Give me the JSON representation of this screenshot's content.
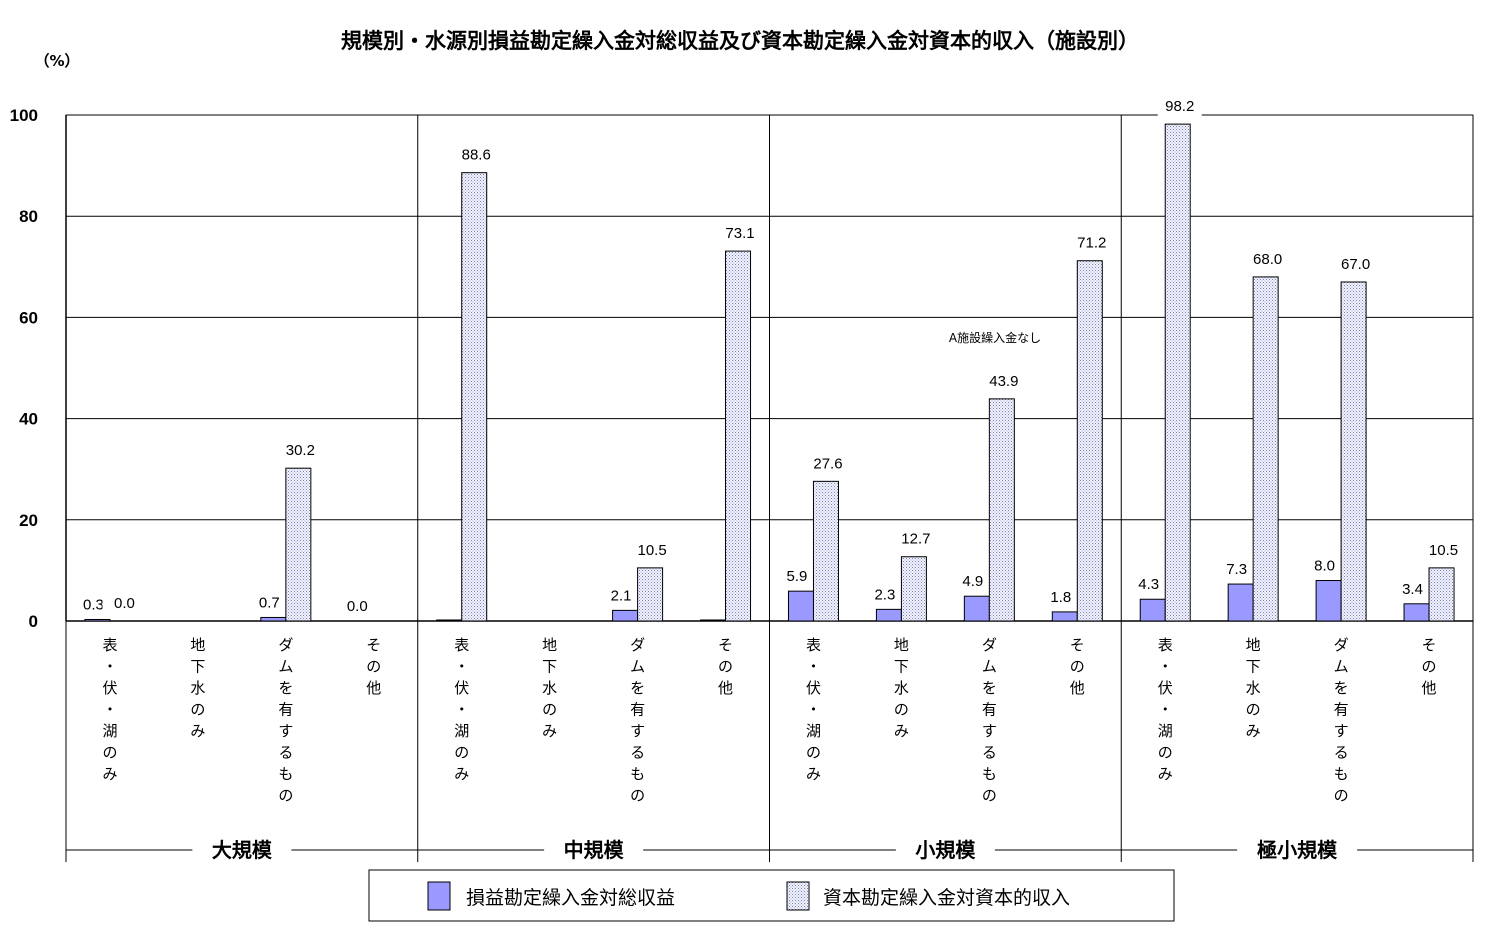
{
  "chart_data": {
    "type": "bar",
    "title": "規模別・水源別損益勘定繰入金対総収益及び資本勘定繰入金対資本的収入（施設別）",
    "ylabel": "（%）",
    "ylim": [
      0,
      100
    ],
    "yticks": [
      "0",
      "20",
      "40",
      "60",
      "80",
      "100"
    ],
    "grid": true,
    "legend_position": "bottom",
    "colors": {
      "series1": "#9999ff",
      "series2_pattern": "#c4c8e8"
    },
    "groups": [
      {
        "label": "大規模",
        "categories": [
          {
            "label": "表・伏・湖のみ",
            "s1": 0.3,
            "s1_label": "0.3",
            "s2": 0.0,
            "s2_label": "0.0"
          },
          {
            "label": "地下水のみ",
            "s1": null,
            "s1_label": "",
            "s2": null,
            "s2_label": ""
          },
          {
            "label": "ダムを有するもの",
            "s1": 0.7,
            "s1_label": "0.7",
            "s2": 30.2,
            "s2_label": "30.2"
          },
          {
            "label": "その他",
            "s1": 0.0,
            "s1_label": "0.0",
            "s2": null,
            "s2_label": ""
          }
        ]
      },
      {
        "label": "中規模",
        "categories": [
          {
            "label": "表・伏・湖のみ",
            "s1": 0.2,
            "s1_label": "",
            "s2": 88.6,
            "s2_label": "88.6"
          },
          {
            "label": "地下水のみ",
            "s1": null,
            "s1_label": "",
            "s2": null,
            "s2_label": ""
          },
          {
            "label": "ダムを有するもの",
            "s1": 2.1,
            "s1_label": "2.1",
            "s2": 10.5,
            "s2_label": "10.5"
          },
          {
            "label": "その他",
            "s1": 0.2,
            "s1_label": "",
            "s2": 73.1,
            "s2_label": "73.1"
          }
        ]
      },
      {
        "label": "小規模",
        "categories": [
          {
            "label": "表・伏・湖のみ",
            "s1": 5.9,
            "s1_label": "5.9",
            "s2": 27.6,
            "s2_label": "27.6"
          },
          {
            "label": "地下水のみ",
            "s1": 2.3,
            "s1_label": "2.3",
            "s2": 12.7,
            "s2_label": "12.7"
          },
          {
            "label": "ダムを有するもの",
            "s1": 4.9,
            "s1_label": "4.9",
            "s2": 43.9,
            "s2_label": "43.9"
          },
          {
            "label": "その他",
            "s1": 1.8,
            "s1_label": "1.8",
            "s2": 71.2,
            "s2_label": "71.2"
          }
        ]
      },
      {
        "label": "極小規模",
        "categories": [
          {
            "label": "表・伏・湖のみ",
            "s1": 4.3,
            "s1_label": "4.3",
            "s2": 98.2,
            "s2_label": "98.2"
          },
          {
            "label": "地下水のみ",
            "s1": 7.3,
            "s1_label": "7.3",
            "s2": 68.0,
            "s2_label": "68.0"
          },
          {
            "label": "ダムを有するもの",
            "s1": 8.0,
            "s1_label": "8.0",
            "s2": 67.0,
            "s2_label": "67.0"
          },
          {
            "label": "その他",
            "s1": 3.4,
            "s1_label": "3.4",
            "s2": 10.5,
            "s2_label": "10.5"
          }
        ]
      }
    ],
    "annotation": "A施設繰入金なし",
    "series": [
      {
        "name": "損益勘定繰入金対総収益"
      },
      {
        "name": "資本勘定繰入金対資本的収入"
      }
    ]
  }
}
